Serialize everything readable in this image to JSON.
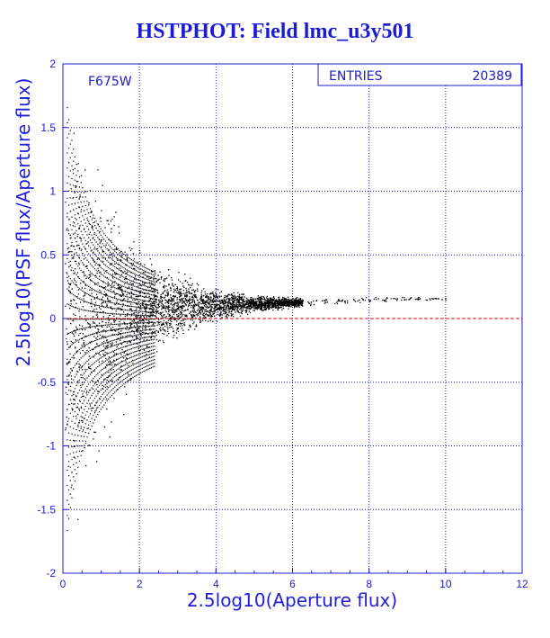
{
  "title": "HSTPHOT: Field lmc_u3y501",
  "stats": {
    "entries_label": "ENTRIES",
    "entries_value": "20389"
  },
  "filter_label": "F675W",
  "colors": {
    "axes": "#1c1cd2",
    "grid": "#1c1cd2",
    "points": "#000000",
    "zero_line": "#d01010"
  },
  "chart_data": {
    "type": "scatter",
    "title": "HSTPHOT: Field lmc_u3y501",
    "xlabel": "2.5log10(Aperture flux)",
    "ylabel": "2.5log10(PSF flux/Aperture flux)",
    "xlim": [
      0,
      12
    ],
    "ylim": [
      -2,
      2
    ],
    "x_ticks": [
      "0",
      "2",
      "4",
      "6",
      "8",
      "10",
      "12"
    ],
    "y_ticks": [
      "2",
      "1.5",
      "1",
      "0.5",
      "0",
      "-0.5",
      "-1",
      "-1.5",
      "-2"
    ],
    "grid": true,
    "reference_line_y": 0,
    "entries": 20389,
    "series_shape": [
      {
        "x": 0.1,
        "y_median": 0.0,
        "y_spread": 1.9
      },
      {
        "x": 0.5,
        "y_median": 0.0,
        "y_spread": 1.7
      },
      {
        "x": 1.0,
        "y_median": 0.02,
        "y_spread": 1.3
      },
      {
        "x": 1.5,
        "y_median": 0.05,
        "y_spread": 0.9
      },
      {
        "x": 2.0,
        "y_median": 0.08,
        "y_spread": 0.55
      },
      {
        "x": 3.0,
        "y_median": 0.1,
        "y_spread": 0.3
      },
      {
        "x": 4.0,
        "y_median": 0.11,
        "y_spread": 0.15
      },
      {
        "x": 5.0,
        "y_median": 0.12,
        "y_spread": 0.08
      },
      {
        "x": 6.0,
        "y_median": 0.13,
        "y_spread": 0.05
      },
      {
        "x": 7.0,
        "y_median": 0.14,
        "y_spread": 0.03
      },
      {
        "x": 8.0,
        "y_median": 0.15,
        "y_spread": 0.03
      },
      {
        "x": 9.0,
        "y_median": 0.16,
        "y_spread": 0.02
      },
      {
        "x": 10.0,
        "y_median": 0.16,
        "y_spread": 0.02
      }
    ]
  }
}
